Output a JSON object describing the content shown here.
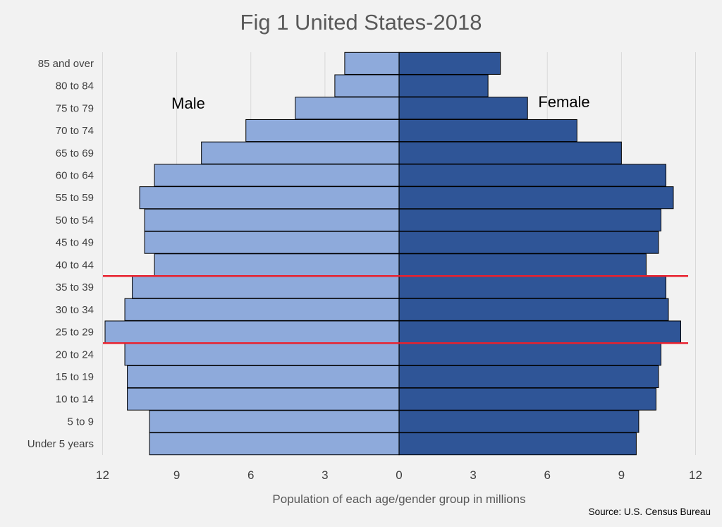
{
  "chart_data": {
    "type": "bar",
    "orientation": "horizontal",
    "layout": "population-pyramid",
    "title": "Fig 1 United States-2018",
    "xlabel": "Population of each age/gender group in millions",
    "ylabel": "",
    "source": "Source: U.S. Census Bureau",
    "xlim": [
      -12,
      12
    ],
    "x_ticks": [
      12,
      9,
      6,
      3,
      0,
      3,
      6,
      9,
      12
    ],
    "grid": true,
    "categories": [
      "85 and over",
      "80 to 84",
      "75 to 79",
      "70 to 74",
      "65 to 69",
      "60 to 64",
      "55 to 59",
      "50 to 54",
      "45 to 49",
      "40 to 44",
      "35 to 39",
      "30 to 34",
      "25 to 29",
      "20 to 24",
      "15 to 19",
      "10 to 14",
      "5 to 9",
      "Under 5 years"
    ],
    "series": [
      {
        "name": "Male",
        "color": "#8eaadb",
        "values": [
          2.2,
          2.6,
          4.2,
          6.2,
          8.0,
          9.9,
          10.5,
          10.3,
          10.3,
          9.9,
          10.8,
          11.1,
          11.9,
          11.1,
          11.0,
          11.0,
          10.1,
          10.1
        ]
      },
      {
        "name": "Female",
        "color": "#2f5597",
        "values": [
          4.1,
          3.6,
          5.2,
          7.2,
          9.0,
          10.8,
          11.1,
          10.6,
          10.5,
          10.0,
          10.8,
          10.9,
          11.4,
          10.6,
          10.5,
          10.4,
          9.7,
          9.6
        ]
      }
    ],
    "highlight_lines": {
      "color": "#e8212e",
      "between_categories": [
        [
          "40 to 44",
          "35 to 39"
        ],
        [
          "25 to 29",
          "20 to 24"
        ]
      ]
    }
  }
}
